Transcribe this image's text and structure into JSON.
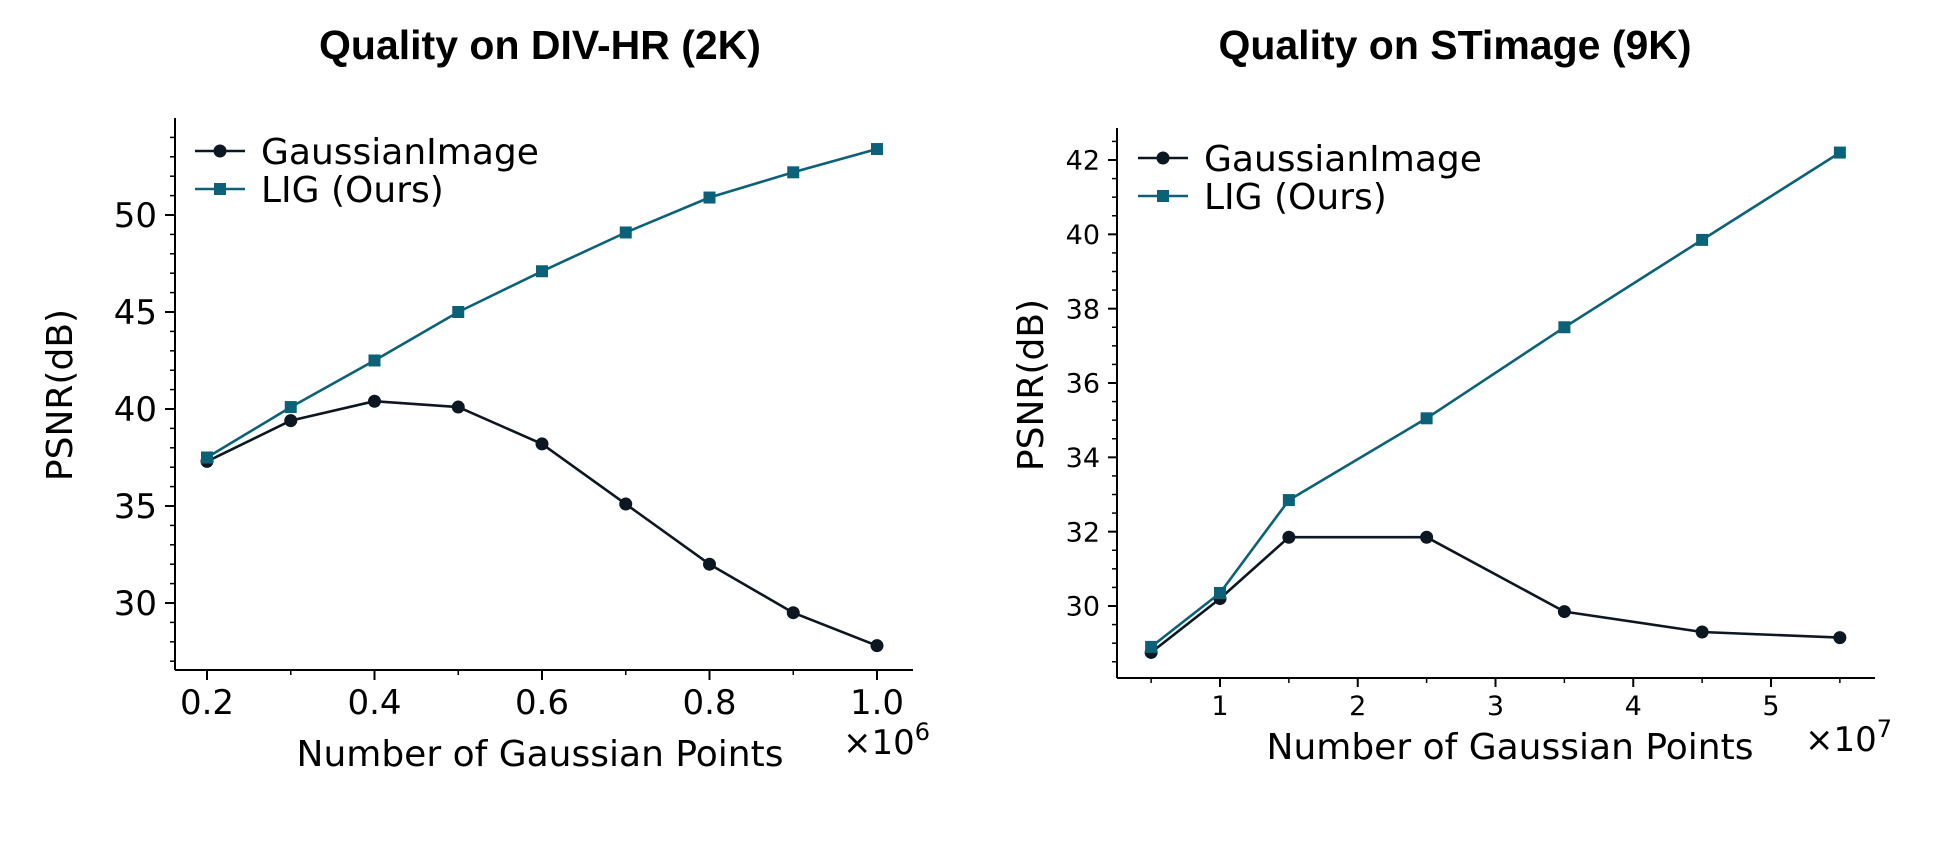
{
  "colors": {
    "gaussian": "#0d1722",
    "lig": "#0b6278",
    "axis": "#000000"
  },
  "chart_data": [
    {
      "type": "line",
      "title": "Quality on DIV-HR (2K)",
      "xlabel": "Number of Gaussian Points",
      "ylabel": "PSNR(dB)",
      "x_multiplier_label": "×10",
      "x_multiplier_exp": "6",
      "x": [
        0.2,
        0.3,
        0.4,
        0.5,
        0.6,
        0.7,
        0.8,
        0.9,
        1.0
      ],
      "xlim": [
        0.16,
        1.035
      ],
      "ylim": [
        26.8,
        54.8
      ],
      "x_ticks": [
        0.2,
        0.4,
        0.6,
        0.8,
        1.0
      ],
      "x_tick_labels": [
        "0.2",
        "0.4",
        "0.6",
        "0.8",
        "1.0"
      ],
      "x_minor_ticks": [
        0.3,
        0.5,
        0.7,
        0.9
      ],
      "y_ticks": [
        30,
        35,
        40,
        45,
        50
      ],
      "y_tick_labels": [
        "30",
        "35",
        "40",
        "45",
        "50"
      ],
      "y_minor_ticks": [
        27,
        28,
        29,
        31,
        32,
        33,
        34,
        36,
        37,
        38,
        39,
        41,
        42,
        43,
        44,
        46,
        47,
        48,
        49,
        51,
        52,
        53,
        54
      ],
      "legend": "top-left",
      "series": [
        {
          "name": "GaussianImage",
          "marker": "circle",
          "values": [
            37.3,
            39.4,
            40.4,
            40.1,
            38.2,
            35.1,
            32.0,
            29.5,
            27.8
          ]
        },
        {
          "name": "LIG (Ours)",
          "marker": "square",
          "values": [
            37.5,
            40.1,
            42.5,
            45.0,
            47.1,
            49.1,
            50.9,
            52.2,
            53.4
          ]
        }
      ]
    },
    {
      "type": "line",
      "title": "Quality on STimage (9K)",
      "xlabel": "Number of Gaussian Points",
      "ylabel": "PSNR(dB)",
      "x_multiplier_label": "×10",
      "x_multiplier_exp": "7",
      "x": [
        0.5,
        1.0,
        1.5,
        2.5,
        3.5,
        4.5,
        5.5
      ],
      "xlim": [
        0.27,
        5.75
      ],
      "ylim": [
        28.1,
        42.9
      ],
      "x_ticks": [
        1,
        2,
        3,
        4,
        5
      ],
      "x_tick_labels": [
        "1",
        "2",
        "3",
        "4",
        "5"
      ],
      "x_minor_ticks": [
        0.5,
        1.5,
        2.5,
        3.5,
        4.5,
        5.5
      ],
      "y_ticks": [
        30,
        32,
        34,
        36,
        38,
        40,
        42
      ],
      "y_tick_labels": [
        "30",
        "32",
        "34",
        "36",
        "38",
        "40",
        "42"
      ],
      "y_minor_ticks": [
        28.5,
        29,
        29.5,
        30.5,
        31,
        31.5,
        32.5,
        33,
        33.5,
        34.5,
        35,
        35.5,
        36.5,
        37,
        37.5,
        38.5,
        39,
        39.5,
        40.5,
        41,
        41.5,
        42.5
      ],
      "legend": "top-left",
      "series": [
        {
          "name": "GaussianImage",
          "marker": "circle",
          "values": [
            28.75,
            30.2,
            31.85,
            31.85,
            29.85,
            29.3,
            29.15
          ]
        },
        {
          "name": "LIG (Ours)",
          "marker": "square",
          "values": [
            28.9,
            30.35,
            32.85,
            35.05,
            37.5,
            39.85,
            42.2
          ]
        }
      ]
    }
  ]
}
